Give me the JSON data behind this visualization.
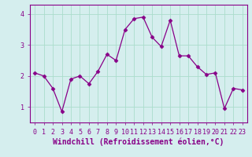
{
  "x": [
    0,
    1,
    2,
    3,
    4,
    5,
    6,
    7,
    8,
    9,
    10,
    11,
    12,
    13,
    14,
    15,
    16,
    17,
    18,
    19,
    20,
    21,
    22,
    23
  ],
  "y": [
    2.1,
    2.0,
    1.6,
    0.85,
    1.9,
    2.0,
    1.75,
    2.15,
    2.7,
    2.5,
    3.5,
    3.85,
    3.9,
    3.25,
    2.95,
    3.8,
    2.65,
    2.65,
    2.3,
    2.05,
    2.1,
    0.95,
    1.6,
    1.55
  ],
  "line_color": "#880088",
  "marker": "D",
  "marker_size": 2.5,
  "bg_color": "#d5eeee",
  "grid_color": "#aaddcc",
  "xlabel": "Windchill (Refroidissement éolien,°C)",
  "tick_color": "#880088",
  "xlabel_color": "#880088",
  "xtick_labels": [
    "0",
    "1",
    "2",
    "3",
    "4",
    "5",
    "6",
    "7",
    "8",
    "9",
    "10",
    "11",
    "12",
    "13",
    "14",
    "15",
    "16",
    "17",
    "18",
    "19",
    "20",
    "21",
    "22",
    "23"
  ],
  "yticks": [
    1,
    2,
    3,
    4
  ],
  "ylim": [
    0.5,
    4.3
  ],
  "xlim": [
    -0.5,
    23.5
  ],
  "tick_fontsize": 6,
  "xlabel_fontsize": 7,
  "spine_color": "#880088",
  "figsize": [
    3.2,
    2.0
  ],
  "dpi": 100
}
